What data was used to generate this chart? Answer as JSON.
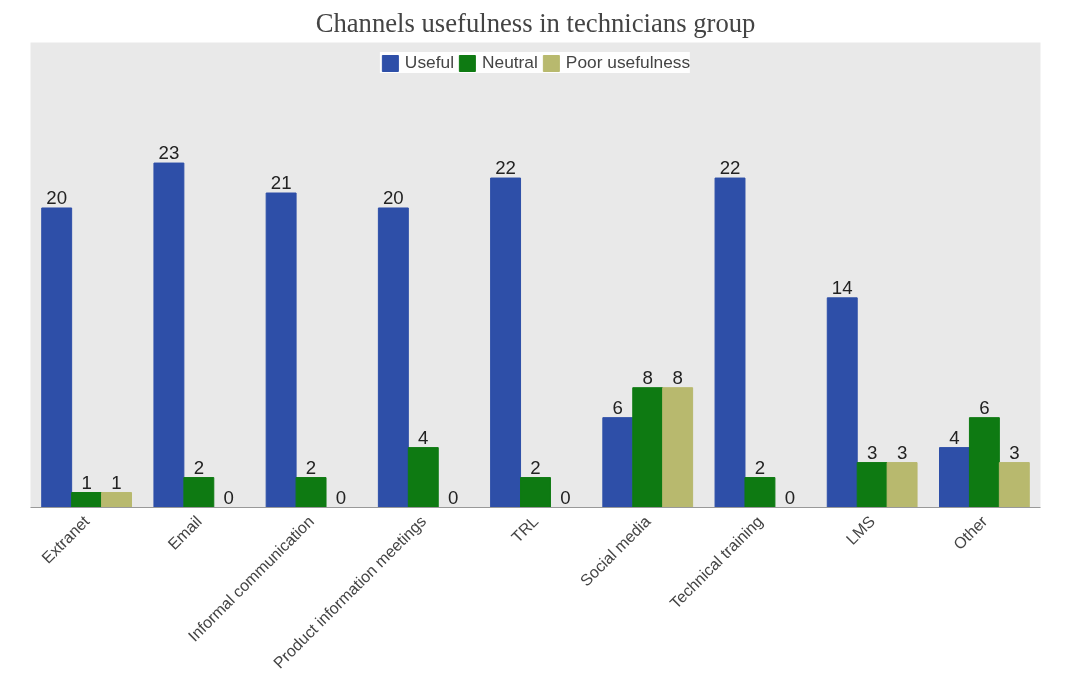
{
  "chart_data": {
    "type": "bar",
    "title": "Channels usefulness in technicians group",
    "categories": [
      "Extranet",
      "Email",
      "Informal communication",
      "Product information meetings",
      "TRL",
      "Social media",
      "Technical training",
      "LMS",
      "Other"
    ],
    "series": [
      {
        "name": "Useful",
        "color": "#2e4fa8",
        "values": [
          20,
          23,
          21,
          20,
          22,
          6,
          22,
          14,
          4
        ]
      },
      {
        "name": "Neutral",
        "color": "#0e7a12",
        "values": [
          1,
          2,
          2,
          4,
          2,
          8,
          2,
          3,
          6
        ]
      },
      {
        "name": "Poor usefulness",
        "color": "#b8b96e",
        "values": [
          1,
          0,
          0,
          0,
          0,
          8,
          0,
          3,
          3
        ]
      }
    ],
    "data_labels": true,
    "legend": "top"
  }
}
